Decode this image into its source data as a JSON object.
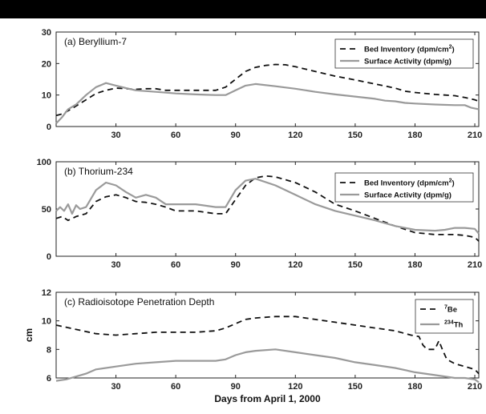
{
  "colors": {
    "dashed": "#111111",
    "solid": "#9a9a9a",
    "bar": "#000000"
  },
  "chart_data": [
    {
      "type": "line",
      "title": "(a) Beryllium-7",
      "xlim": [
        0,
        212
      ],
      "ylim": [
        0,
        30
      ],
      "xticks": [
        30,
        60,
        90,
        120,
        150,
        180,
        210
      ],
      "yticks": [
        0,
        10,
        20,
        30
      ],
      "ylabel": "",
      "legend_position": "top-right",
      "series": [
        {
          "name": "Bed Inventory (dpm/cm²)",
          "legend_base": "Bed Inventory (dpm/cm",
          "legend_sup": "2",
          "legend_tail": ")",
          "style": "dashed",
          "x": [
            0,
            3,
            6,
            10,
            15,
            20,
            25,
            30,
            35,
            40,
            45,
            50,
            55,
            60,
            65,
            70,
            75,
            80,
            85,
            90,
            95,
            100,
            105,
            110,
            115,
            120,
            130,
            140,
            150,
            160,
            170,
            175,
            180,
            190,
            200,
            205,
            210,
            212
          ],
          "y": [
            3.5,
            4.0,
            5.0,
            6.5,
            8.5,
            10.5,
            11.5,
            12.2,
            12.0,
            11.8,
            12.0,
            12.0,
            11.5,
            11.5,
            11.5,
            11.5,
            11.5,
            11.5,
            12.5,
            15.0,
            17.5,
            18.8,
            19.4,
            19.7,
            19.6,
            19.0,
            17.5,
            16.0,
            14.8,
            13.5,
            12.2,
            11.2,
            10.8,
            10.2,
            9.8,
            9.2,
            8.5,
            8.0
          ]
        },
        {
          "name": "Surface Activity (dpm/g)",
          "style": "solid",
          "x": [
            0,
            3,
            6,
            10,
            15,
            20,
            25,
            30,
            35,
            40,
            50,
            60,
            70,
            80,
            85,
            90,
            95,
            100,
            110,
            120,
            130,
            140,
            150,
            160,
            165,
            170,
            175,
            180,
            190,
            200,
            205,
            208,
            212
          ],
          "y": [
            1.0,
            3.0,
            5.5,
            7.0,
            10.0,
            12.5,
            13.8,
            13.0,
            12.2,
            11.5,
            11.0,
            10.5,
            10.2,
            10.0,
            10.0,
            11.5,
            13.0,
            13.5,
            12.8,
            12.0,
            11.0,
            10.2,
            9.5,
            8.8,
            8.2,
            8.0,
            7.5,
            7.3,
            7.0,
            6.8,
            6.8,
            6.0,
            5.5
          ]
        }
      ]
    },
    {
      "type": "line",
      "title": "(b) Thorium-234",
      "xlim": [
        0,
        212
      ],
      "ylim": [
        0,
        100
      ],
      "xticks": [
        30,
        60,
        90,
        120,
        150,
        180,
        210
      ],
      "yticks": [
        0,
        50,
        100
      ],
      "ylabel": "",
      "legend_position": "top-right",
      "series": [
        {
          "name": "Bed Inventory (dpm/cm²)",
          "legend_base": "Bed Inventory (dpm/cm",
          "legend_sup": "2",
          "legend_tail": ")",
          "style": "dashed",
          "x": [
            0,
            3,
            6,
            10,
            15,
            20,
            25,
            30,
            35,
            40,
            45,
            50,
            55,
            60,
            70,
            80,
            85,
            90,
            95,
            100,
            105,
            110,
            120,
            130,
            140,
            150,
            160,
            170,
            180,
            190,
            200,
            205,
            210,
            212
          ],
          "y": [
            40,
            42,
            38,
            42,
            45,
            58,
            63,
            65,
            62,
            58,
            57,
            55,
            52,
            48,
            48,
            45,
            45,
            60,
            75,
            83,
            85,
            84,
            78,
            68,
            55,
            48,
            40,
            32,
            25,
            23,
            23,
            22,
            20,
            16
          ]
        },
        {
          "name": "Surface Activity (dpm/g)",
          "style": "solid",
          "x": [
            0,
            2,
            4,
            6,
            8,
            10,
            12,
            15,
            20,
            25,
            30,
            35,
            40,
            45,
            50,
            55,
            60,
            70,
            80,
            85,
            90,
            95,
            100,
            110,
            120,
            130,
            140,
            150,
            160,
            170,
            180,
            190,
            195,
            200,
            205,
            210,
            212
          ],
          "y": [
            48,
            52,
            48,
            55,
            45,
            54,
            50,
            52,
            70,
            78,
            75,
            68,
            62,
            65,
            62,
            55,
            55,
            55,
            52,
            52,
            70,
            80,
            82,
            75,
            65,
            55,
            48,
            43,
            38,
            32,
            28,
            27,
            28,
            30,
            30,
            29,
            24
          ]
        }
      ]
    },
    {
      "type": "line",
      "title": "(c) Radioisotope Penetration Depth",
      "xlim": [
        0,
        212
      ],
      "ylim": [
        6,
        12
      ],
      "xticks": [
        30,
        60,
        90,
        120,
        150,
        180,
        210
      ],
      "yticks": [
        6,
        8,
        10,
        12
      ],
      "ylabel": "cm",
      "xlabel": "Days from April 1, 2000",
      "legend_position": "top-right",
      "series": [
        {
          "name": "⁷Be",
          "legend_sup": "7",
          "legend_base": "Be",
          "legend_sup_first": true,
          "style": "dashed",
          "x": [
            0,
            10,
            20,
            30,
            40,
            50,
            60,
            70,
            80,
            85,
            90,
            95,
            100,
            110,
            120,
            130,
            140,
            150,
            160,
            170,
            178,
            182,
            184,
            186,
            188,
            190,
            192,
            194,
            196,
            200,
            205,
            210,
            212
          ],
          "y": [
            9.7,
            9.4,
            9.1,
            9.0,
            9.1,
            9.2,
            9.2,
            9.2,
            9.3,
            9.5,
            9.8,
            10.1,
            10.2,
            10.3,
            10.3,
            10.1,
            9.9,
            9.7,
            9.5,
            9.3,
            9.0,
            8.9,
            8.3,
            8.0,
            8.0,
            8.0,
            8.6,
            7.9,
            7.3,
            7.0,
            6.8,
            6.6,
            6.3
          ]
        },
        {
          "name": "²³⁴Th",
          "legend_sup": "234",
          "legend_base": "Th",
          "legend_sup_first": true,
          "style": "solid",
          "x": [
            0,
            5,
            10,
            15,
            20,
            30,
            40,
            50,
            60,
            70,
            80,
            85,
            90,
            95,
            100,
            110,
            120,
            130,
            140,
            150,
            160,
            170,
            180,
            190,
            200,
            205,
            210,
            212
          ],
          "y": [
            5.8,
            5.9,
            6.1,
            6.3,
            6.6,
            6.8,
            7.0,
            7.1,
            7.2,
            7.2,
            7.2,
            7.3,
            7.6,
            7.8,
            7.9,
            8.0,
            7.8,
            7.6,
            7.4,
            7.1,
            6.9,
            6.7,
            6.4,
            6.2,
            6.0,
            6.0,
            5.9,
            5.7
          ]
        }
      ]
    }
  ]
}
